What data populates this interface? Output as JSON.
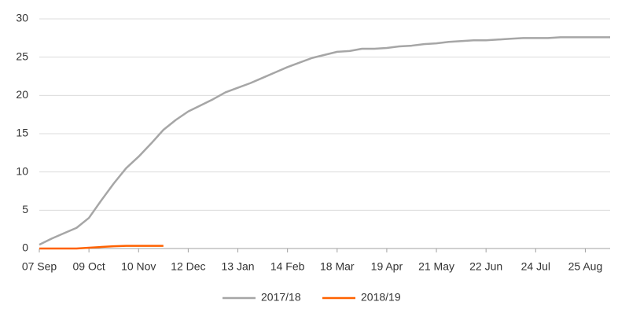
{
  "chart_data": {
    "type": "line",
    "categories": [
      "07 Sep",
      null,
      null,
      null,
      "09 Oct",
      null,
      null,
      null,
      "10 Nov",
      null,
      null,
      null,
      "12 Dec",
      null,
      null,
      null,
      "13 Jan",
      null,
      null,
      null,
      "14 Feb",
      null,
      null,
      null,
      "18 Mar",
      null,
      null,
      null,
      "19 Apr",
      null,
      null,
      null,
      "21 May",
      null,
      null,
      null,
      "22 Jun",
      null,
      null,
      null,
      "24 Jul",
      null,
      null,
      null,
      "25 Aug",
      null,
      null
    ],
    "series": [
      {
        "name": "2017/18",
        "color": "#a6a6a6",
        "values": [
          0.5,
          1.3,
          2.0,
          2.7,
          4.0,
          6.3,
          8.5,
          10.5,
          12.0,
          13.7,
          15.5,
          16.8,
          17.9,
          18.7,
          19.5,
          20.4,
          21.0,
          21.6,
          22.3,
          23.0,
          23.7,
          24.3,
          24.9,
          25.3,
          25.7,
          25.8,
          26.1,
          26.1,
          26.2,
          26.4,
          26.5,
          26.7,
          26.8,
          27.0,
          27.1,
          27.2,
          27.2,
          27.3,
          27.4,
          27.5,
          27.5,
          27.5,
          27.6,
          27.6,
          27.6,
          27.6,
          27.6
        ]
      },
      {
        "name": "2018/19",
        "color": "#ff6200",
        "values": [
          0,
          0,
          0,
          0,
          0.1,
          0.2,
          0.3,
          0.35,
          0.35,
          0.35,
          0.35,
          null,
          null,
          null,
          null,
          null,
          null,
          null,
          null,
          null,
          null,
          null,
          null,
          null,
          null,
          null,
          null,
          null,
          null,
          null,
          null,
          null,
          null,
          null,
          null,
          null,
          null,
          null,
          null,
          null,
          null,
          null,
          null,
          null,
          null,
          null,
          null
        ]
      }
    ],
    "ylim": [
      0,
      30
    ],
    "yticks": [
      0,
      5,
      10,
      15,
      20,
      25,
      30
    ],
    "grid": true,
    "legend": "bottom"
  }
}
